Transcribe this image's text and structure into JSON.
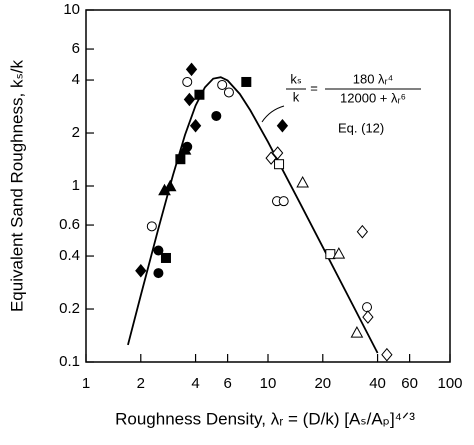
{
  "chart_data": {
    "type": "scatter",
    "x_label": "Roughness Density, λᵣ = (D/k) [Aₛ/Aₚ]⁴ᐟ³",
    "y_label": "Equivalent Sand Roughness, kₛ/k",
    "xlog": true,
    "ylog": true,
    "xlim": [
      1,
      100
    ],
    "ylim": [
      0.1,
      10
    ],
    "xticks": [
      1,
      2,
      4,
      6,
      10,
      20,
      40,
      60,
      100
    ],
    "yticks": [
      0.1,
      0.2,
      0.4,
      0.6,
      1,
      2,
      4,
      6,
      10
    ],
    "color": "#000000",
    "curve": {
      "x": [
        1.7,
        2,
        2.5,
        3,
        3.5,
        4,
        4.5,
        5,
        5.5,
        6,
        7,
        8,
        10,
        15,
        20,
        30,
        40
      ],
      "values": [
        0.125,
        0.239,
        0.574,
        1.145,
        1.952,
        2.863,
        3.635,
        4.072,
        4.151,
        3.977,
        3.333,
        2.689,
        1.779,
        0.799,
        0.45,
        0.2,
        0.1125
      ]
    },
    "series": [
      {
        "marker": "diamond",
        "filled": true,
        "x": [
          2.0,
          3.8,
          3.7,
          4.0,
          12
        ],
        "values": [
          0.33,
          4.6,
          3.1,
          2.2,
          2.2
        ]
      },
      {
        "marker": "circle",
        "filled": true,
        "x": [
          2.5,
          2.5,
          3.6,
          5.2
        ],
        "values": [
          0.43,
          0.32,
          1.67,
          2.5
        ]
      },
      {
        "marker": "square",
        "filled": true,
        "x": [
          2.75,
          3.3,
          4.2,
          7.6
        ],
        "values": [
          0.39,
          1.42,
          3.3,
          3.9
        ]
      },
      {
        "marker": "triangle",
        "filled": true,
        "x": [
          2.7,
          2.9,
          3.5
        ],
        "values": [
          0.94,
          0.99,
          1.6
        ]
      },
      {
        "marker": "circle",
        "filled": false,
        "x": [
          2.3,
          3.6,
          5.6,
          6.1,
          11.2,
          12.2,
          35
        ],
        "values": [
          0.59,
          3.9,
          3.75,
          3.4,
          0.82,
          0.82,
          0.205
        ]
      },
      {
        "marker": "diamond",
        "filled": false,
        "x": [
          10.4,
          11.3,
          33,
          35.4,
          45
        ],
        "values": [
          1.44,
          1.54,
          0.55,
          0.18,
          0.11
        ]
      },
      {
        "marker": "square",
        "filled": false,
        "x": [
          11.5,
          22
        ],
        "values": [
          1.33,
          0.41
        ]
      },
      {
        "marker": "triangle",
        "filled": false,
        "x": [
          15.5,
          24.5,
          30.8
        ],
        "values": [
          1.04,
          0.41,
          0.146
        ]
      }
    ],
    "equation": {
      "lhs_num": "kₛ",
      "lhs_den": "k",
      "eq": "=",
      "rhs_num": "180 λᵣ⁴",
      "rhs_den": "12000 + λᵣ⁶",
      "label": "Eq. (12)"
    }
  }
}
